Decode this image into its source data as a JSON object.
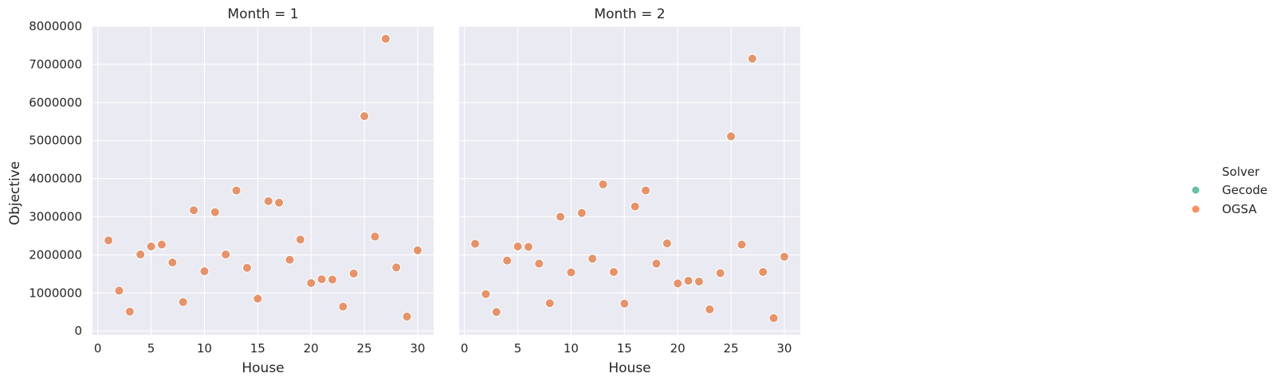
{
  "chart_data": {
    "type": "scatter",
    "xlabel": "House",
    "ylabel": "Objective",
    "xlim": [
      -0.5,
      31.5
    ],
    "ylim": [
      -100000,
      8000000
    ],
    "xticks": [
      "0",
      "5",
      "10",
      "15",
      "20",
      "25",
      "30"
    ],
    "yticks": [
      "0",
      "1000000",
      "2000000",
      "3000000",
      "4000000",
      "5000000",
      "6000000",
      "7000000",
      "8000000"
    ],
    "grid": true,
    "legend": {
      "title": "Solver",
      "placement": "right",
      "entries": [
        {
          "label": "Gecode",
          "color": "#66c2a5"
        },
        {
          "label": "OGSA",
          "color": "#fc8d62"
        }
      ]
    },
    "point_color": "#e4936a",
    "facets": [
      {
        "title": "Month = 1",
        "series": [
          {
            "name": "OGSA",
            "x": [
              1,
              2,
              3,
              4,
              5,
              6,
              7,
              8,
              9,
              10,
              11,
              12,
              13,
              14,
              15,
              16,
              17,
              18,
              19,
              20,
              21,
              22,
              23,
              24,
              25,
              26,
              27,
              28,
              29,
              30
            ],
            "y": [
              2380000,
              1060000,
              510000,
              2010000,
              2220000,
              2270000,
              1800000,
              760000,
              3170000,
              1570000,
              3120000,
              2010000,
              3690000,
              1660000,
              850000,
              3410000,
              3370000,
              1870000,
              2400000,
              1260000,
              1360000,
              1350000,
              640000,
              1510000,
              5640000,
              2480000,
              7670000,
              1670000,
              380000,
              2120000
            ]
          }
        ]
      },
      {
        "title": "Month = 2",
        "series": [
          {
            "name": "OGSA",
            "x": [
              1,
              2,
              3,
              4,
              5,
              6,
              7,
              8,
              9,
              10,
              11,
              12,
              13,
              14,
              15,
              16,
              17,
              18,
              19,
              20,
              21,
              22,
              23,
              24,
              25,
              26,
              27,
              28,
              29,
              30
            ],
            "y": [
              2290000,
              970000,
              500000,
              1850000,
              2220000,
              2210000,
              1770000,
              730000,
              3000000,
              1540000,
              3100000,
              1900000,
              3850000,
              1550000,
              720000,
              3270000,
              3690000,
              1770000,
              2300000,
              1250000,
              1320000,
              1300000,
              570000,
              1520000,
              5110000,
              2270000,
              7150000,
              1550000,
              340000,
              1950000
            ]
          }
        ]
      }
    ]
  }
}
